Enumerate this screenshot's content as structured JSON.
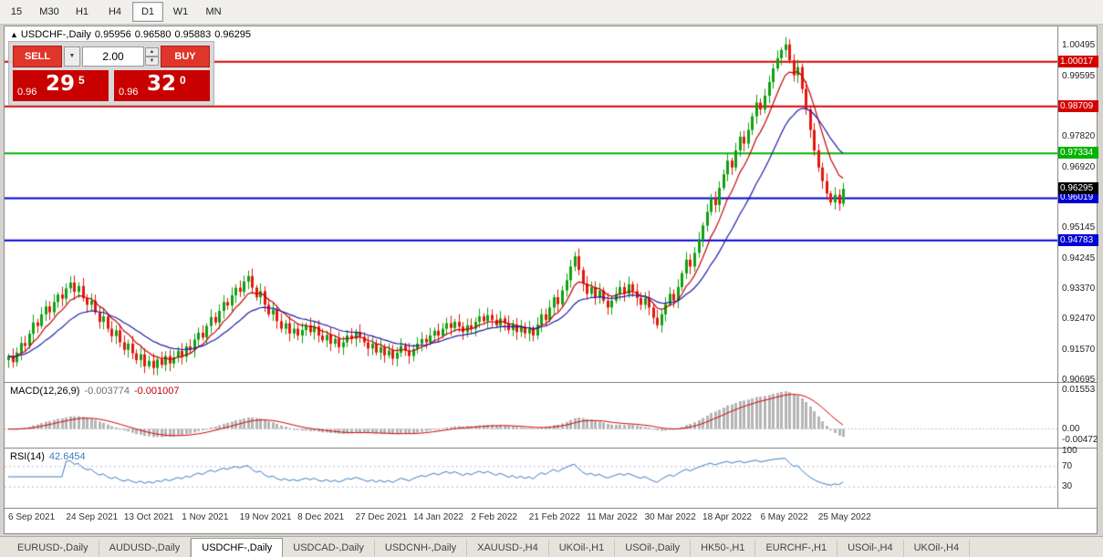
{
  "toolbar": {
    "timeframes": [
      {
        "label": "15",
        "active": false
      },
      {
        "label": "M30",
        "active": false
      },
      {
        "label": "H1",
        "active": false
      },
      {
        "label": "H4",
        "active": false
      },
      {
        "label": "D1",
        "active": true
      },
      {
        "label": "W1",
        "active": false
      },
      {
        "label": "MN",
        "active": false
      }
    ]
  },
  "chart": {
    "title": {
      "symbol": "USDCHF-,Daily",
      "open": "0.95956",
      "high": "0.96580",
      "low": "0.95883",
      "close": "0.96295"
    },
    "trade_panel": {
      "sell_label": "SELL",
      "buy_label": "BUY",
      "volume": "2.00",
      "sell_price": {
        "big_figure": "0.96",
        "pips": "29",
        "pipette": "5"
      },
      "buy_price": {
        "big_figure": "0.96",
        "pips": "32",
        "pipette": "0"
      }
    },
    "price_axis": {
      "current_price": {
        "value": "0.96295",
        "color": "#000000"
      }
    }
  },
  "macd": {
    "label": "MACD(12,26,9)",
    "value1": "-0.003774",
    "value2": "-0.001007"
  },
  "rsi": {
    "label": "RSI(14)",
    "value": "42.6454"
  },
  "tabs": [
    {
      "label": "EURUSD-,Daily",
      "active": false
    },
    {
      "label": "AUDUSD-,Daily",
      "active": false
    },
    {
      "label": "USDCHF-,Daily",
      "active": true
    },
    {
      "label": "USDCAD-,Daily",
      "active": false
    },
    {
      "label": "USDCNH-,Daily",
      "active": false
    },
    {
      "label": "XAUUSD-,H4",
      "active": false
    },
    {
      "label": "UKOil-,H1",
      "active": false
    },
    {
      "label": "USOil-,Daily",
      "active": false
    },
    {
      "label": "HK50-,H1",
      "active": false
    },
    {
      "label": "EURCHF-,H1",
      "active": false
    },
    {
      "label": "USOil-,H4",
      "active": false
    },
    {
      "label": "UKOil-,H4",
      "active": false
    }
  ],
  "chart_data": {
    "type": "candlestick",
    "symbol": "USDCHF",
    "timeframe": "Daily",
    "current_bar": {
      "open": 0.95956,
      "high": 0.9658,
      "low": 0.95883,
      "close": 0.96295
    },
    "y_range": [
      0.9064,
      1.0105
    ],
    "y_axis_ticks": [
      "1.00495",
      "0.99595",
      "0.97820",
      "0.96920",
      "0.95145",
      "0.94245",
      "0.93370",
      "0.92470",
      "0.91570",
      "0.90695"
    ],
    "horizontal_lines": [
      {
        "price": 1.00017,
        "label": "1.00017",
        "color": "#d40000"
      },
      {
        "price": 0.98709,
        "label": "0.98709",
        "color": "#d40000"
      },
      {
        "price": 0.97334,
        "label": "0.97334",
        "color": "#00b400"
      },
      {
        "price": 0.96019,
        "label": "0.96019",
        "color": "#0000d4"
      },
      {
        "price": 0.94783,
        "label": "0.94783",
        "color": "#0000d4"
      }
    ],
    "x_label_step": 14,
    "x_labels": [
      "6 Sep 2021",
      "24 Sep 2021",
      "13 Oct 2021",
      "1 Nov 2021",
      "19 Nov 2021",
      "8 Dec 2021",
      "27 Dec 2021",
      "14 Jan 2022",
      "2 Feb 2022",
      "21 Feb 2022",
      "11 Mar 2022",
      "30 Mar 2022",
      "18 Apr 2022",
      "6 May 2022",
      "25 May 2022"
    ],
    "closes": [
      0.914,
      0.9122,
      0.915,
      0.9178,
      0.917,
      0.9205,
      0.9238,
      0.9228,
      0.9262,
      0.9285,
      0.9268,
      0.9298,
      0.932,
      0.9308,
      0.9338,
      0.9355,
      0.9328,
      0.9345,
      0.931,
      0.929,
      0.9302,
      0.9268,
      0.924,
      0.9256,
      0.922,
      0.9198,
      0.9215,
      0.918,
      0.9158,
      0.9176,
      0.9148,
      0.9128,
      0.9145,
      0.911,
      0.9126,
      0.9105,
      0.913,
      0.9114,
      0.914,
      0.9118,
      0.9136,
      0.9155,
      0.9138,
      0.9168,
      0.9158,
      0.9188,
      0.9208,
      0.9194,
      0.9228,
      0.9254,
      0.9238,
      0.9272,
      0.9298,
      0.9288,
      0.9318,
      0.934,
      0.9328,
      0.9358,
      0.9374,
      0.934,
      0.9312,
      0.933,
      0.929,
      0.9262,
      0.9276,
      0.9242,
      0.922,
      0.9236,
      0.9206,
      0.922,
      0.92,
      0.9216,
      0.923,
      0.921,
      0.9226,
      0.92,
      0.9186,
      0.9202,
      0.9176,
      0.919,
      0.9166,
      0.918,
      0.92,
      0.919,
      0.921,
      0.9196,
      0.918,
      0.9162,
      0.9176,
      0.915,
      0.9166,
      0.9142,
      0.9156,
      0.9132,
      0.915,
      0.917,
      0.9156,
      0.914,
      0.916,
      0.9176,
      0.919,
      0.918,
      0.92,
      0.9214,
      0.92,
      0.922,
      0.9236,
      0.9222,
      0.924,
      0.9226,
      0.921,
      0.923,
      0.922,
      0.924,
      0.9256,
      0.9242,
      0.926,
      0.9246,
      0.923,
      0.925,
      0.9236,
      0.9216,
      0.9232,
      0.921,
      0.9226,
      0.9206,
      0.922,
      0.92,
      0.9232,
      0.9262,
      0.9246,
      0.9282,
      0.9312,
      0.9292,
      0.9332,
      0.9362,
      0.9402,
      0.9432,
      0.9392,
      0.9352,
      0.9322,
      0.9342,
      0.9312,
      0.9332,
      0.9302,
      0.9282,
      0.9302,
      0.9322,
      0.9342,
      0.9322,
      0.935,
      0.933,
      0.931,
      0.929,
      0.931,
      0.9282,
      0.9252,
      0.923,
      0.9262,
      0.9292,
      0.9322,
      0.9302,
      0.9342,
      0.9382,
      0.9422,
      0.9402,
      0.9442,
      0.9482,
      0.9522,
      0.9562,
      0.9602,
      0.9582,
      0.9632,
      0.9672,
      0.9712,
      0.9692,
      0.9742,
      0.9782,
      0.9762,
      0.9802,
      0.9842,
      0.9882,
      0.9862,
      0.9902,
      0.9942,
      0.9982,
      1.0012,
      1.0036,
      1.0052,
      1.0006,
      0.9962,
      0.9986,
      0.9922,
      0.9862,
      0.9802,
      0.9742,
      0.9692,
      0.9652,
      0.9616,
      0.959,
      0.9612,
      0.9586,
      0.96295
    ],
    "up_color": "#0fa00f",
    "down_color": "#e3170d",
    "ma_fast_color": "#c40000",
    "ma_slow_color": "#1c1caa",
    "indicators": {
      "macd": {
        "params": [
          12,
          26,
          9
        ],
        "current_histogram": -0.003774,
        "current_signal": -0.001007,
        "y_ticks": [
          "0.01553",
          "0.00",
          "-0.00472"
        ],
        "signal_color": "#d40000",
        "histogram_color": "#b4b4b4"
      },
      "rsi": {
        "period": 14,
        "current": 42.6454,
        "y_ticks": [
          "100",
          "70",
          "30"
        ],
        "levels": [
          70,
          30
        ],
        "line_color": "#3a7abf"
      }
    }
  }
}
